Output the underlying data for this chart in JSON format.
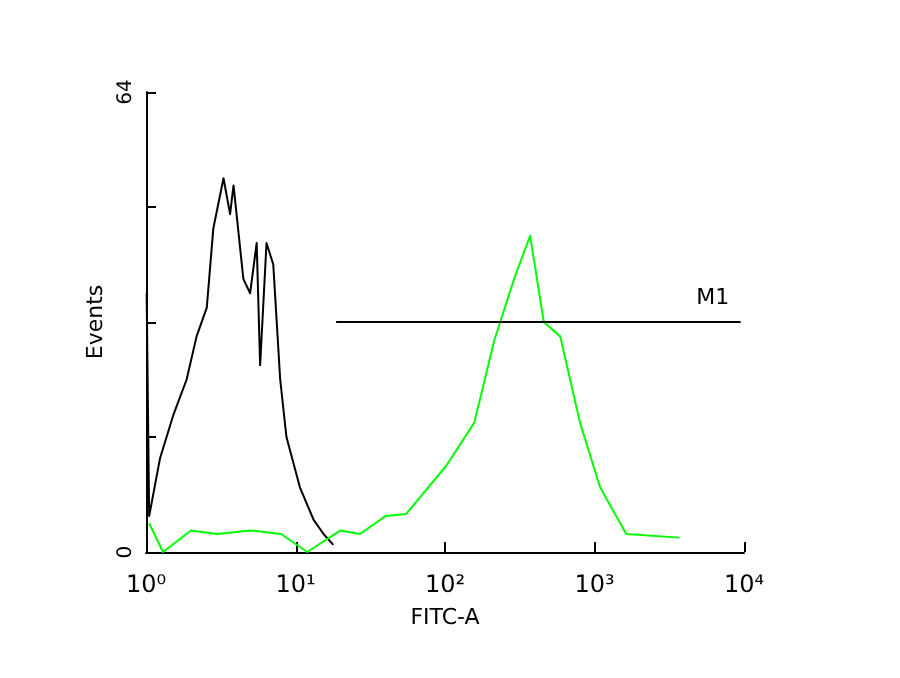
{
  "chart_data": {
    "type": "line",
    "xlabel": "FITC-A",
    "ylabel": "Events",
    "log": "x",
    "grid": false,
    "legend": false,
    "marker": "none",
    "xlim": [
      1,
      10000
    ],
    "xticks": [
      {
        "value": 1,
        "label": "10⁰"
      },
      {
        "value": 10,
        "label": "10¹"
      },
      {
        "value": 100,
        "label": "10²"
      },
      {
        "value": 1000,
        "label": "10³"
      },
      {
        "value": 10000,
        "label": "10⁴"
      }
    ],
    "ylim": [
      0,
      64
    ],
    "yticks": [
      0,
      {
        "value": 16,
        "label": null
      },
      {
        "value": 32,
        "label": null
      },
      {
        "value": 48,
        "label": null
      },
      64
    ],
    "series": [
      {
        "color": "#000000",
        "x": [
          1.01,
          1.05,
          1.24,
          1.52,
          1.87,
          2.18,
          2.55,
          2.82,
          3.3,
          3.65,
          3.85,
          4.48,
          4.97,
          5.5,
          5.8,
          6.4,
          7.1,
          7.9,
          8.7,
          10.7,
          13.2,
          15.4,
          17.9
        ],
        "values": [
          36,
          5,
          13,
          19,
          24,
          30,
          34,
          45,
          52,
          47,
          51,
          38,
          36,
          43,
          26,
          43,
          40,
          24,
          16,
          9,
          4.5,
          2.5,
          1
        ]
      },
      {
        "color": "#00ff00",
        "x": [
          1.05,
          1.3,
          2,
          3,
          5,
          8,
          12,
          20,
          27,
          40,
          55,
          102,
          157,
          214,
          290,
          371,
          458,
          590,
          800,
          1090,
          1630,
          3700
        ],
        "values": [
          4,
          0,
          3,
          2.5,
          3,
          2.5,
          0,
          3,
          2.5,
          5,
          5.3,
          12,
          18,
          29.5,
          38,
          44,
          32,
          30,
          18,
          9,
          2.5,
          2
        ]
      },
      {
        "name": "M1",
        "color": "#000000",
        "x": [
          18.7,
          9500
        ],
        "values": [
          32,
          32
        ]
      }
    ]
  }
}
